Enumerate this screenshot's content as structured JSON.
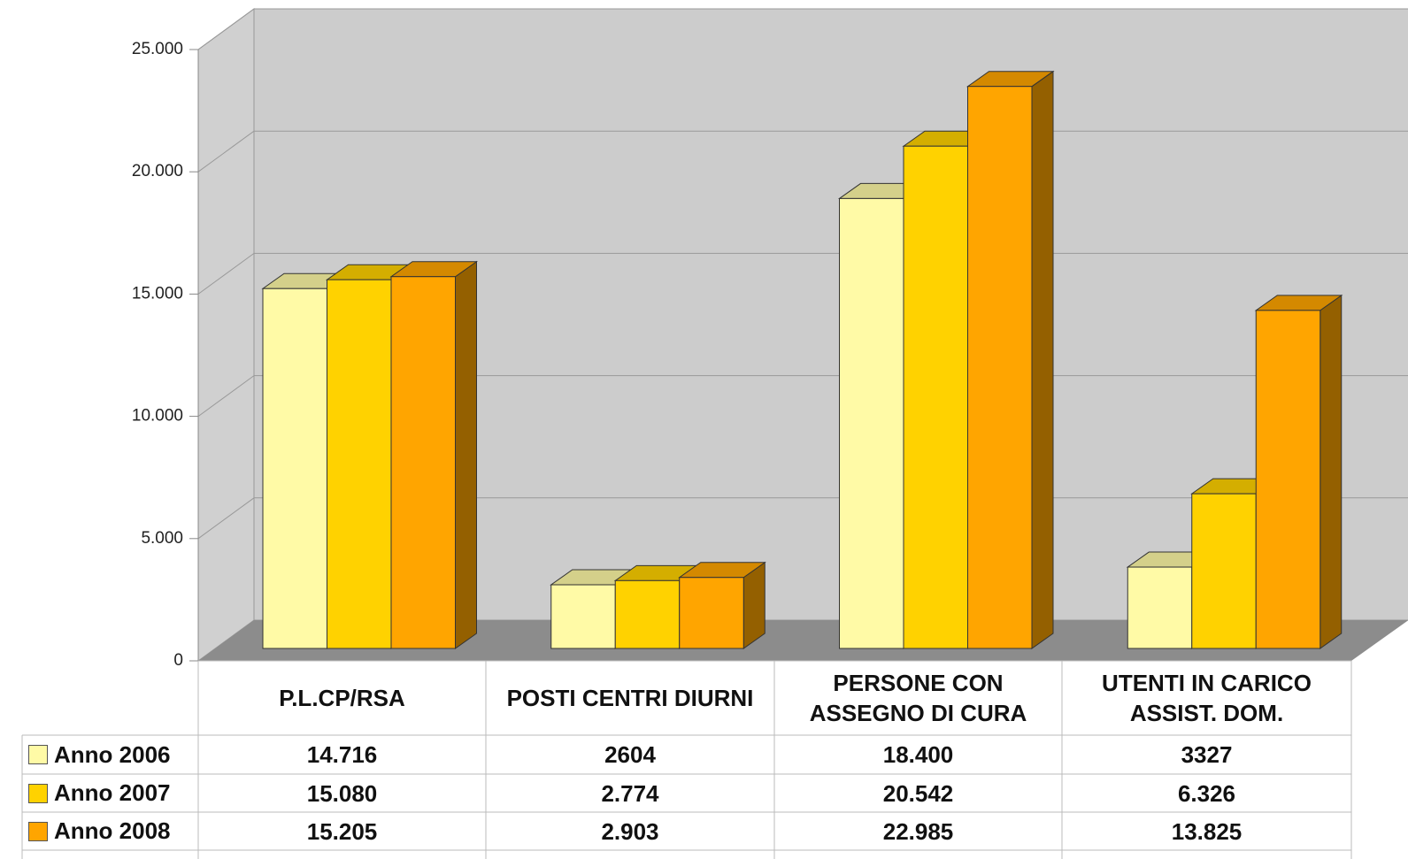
{
  "chart_data": {
    "type": "bar3d",
    "categories": [
      "P.L.CP/RSA",
      "POSTI CENTRI DIURNI",
      "PERSONE CON ASSEGNO DI CURA",
      "UTENTI IN CARICO ASSIST. DOM."
    ],
    "series": [
      {
        "name": "Anno 2006",
        "color": "#fffaa6",
        "values": [
          14716,
          2604,
          18400,
          3327
        ],
        "value_labels": [
          "14.716",
          "2604",
          "18.400",
          "3327"
        ]
      },
      {
        "name": "Anno 2007",
        "color": "#ffd200",
        "values": [
          15080,
          2774,
          20542,
          6326
        ],
        "value_labels": [
          "15.080",
          "2.774",
          "20.542",
          "6.326"
        ]
      },
      {
        "name": "Anno 2008",
        "color": "#ffa500",
        "values": [
          15205,
          2903,
          22985,
          13825
        ],
        "value_labels": [
          "15.205",
          "2.903",
          "22.985",
          "13.825"
        ]
      }
    ],
    "ylim": [
      0,
      25000
    ],
    "yticks": [
      0,
      {
        "value": 5000,
        "label": "5.000"
      },
      {
        "value": 10000,
        "label": "10.000"
      },
      {
        "value": 15000,
        "label": "15.000"
      },
      {
        "value": 20000,
        "label": "20.000"
      },
      {
        "value": 25000,
        "label": "25.000"
      }
    ],
    "grid": true
  }
}
